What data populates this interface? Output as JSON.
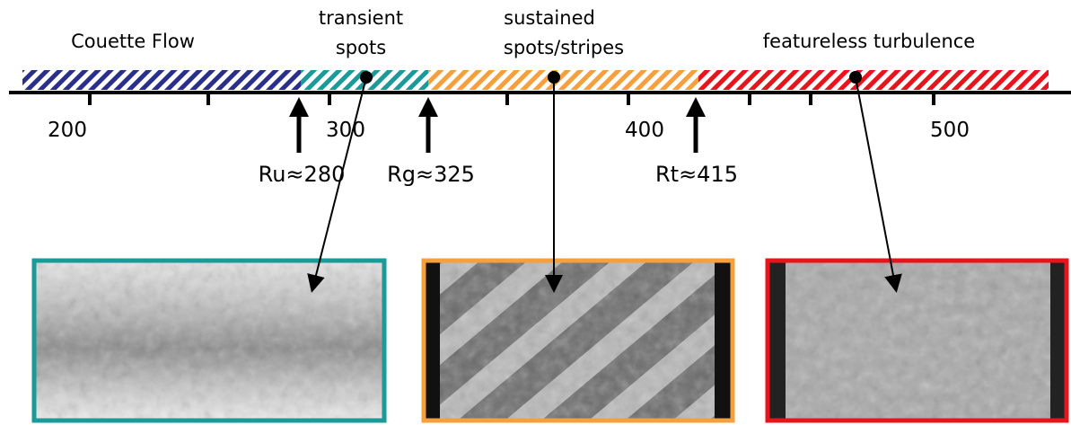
{
  "regimes": [
    {
      "lines": [
        "Couette Flow"
      ]
    },
    {
      "lines": [
        "transient",
        "spots"
      ]
    },
    {
      "lines": [
        "sustained",
        "spots/stripes"
      ]
    },
    {
      "lines": [
        "featureless turbulence"
      ]
    }
  ],
  "axis": {
    "ticks": [
      "200",
      "300",
      "400",
      "500"
    ]
  },
  "thresholds": [
    "Ru≈280",
    "Rg≈325",
    "Rt≈415"
  ]
}
